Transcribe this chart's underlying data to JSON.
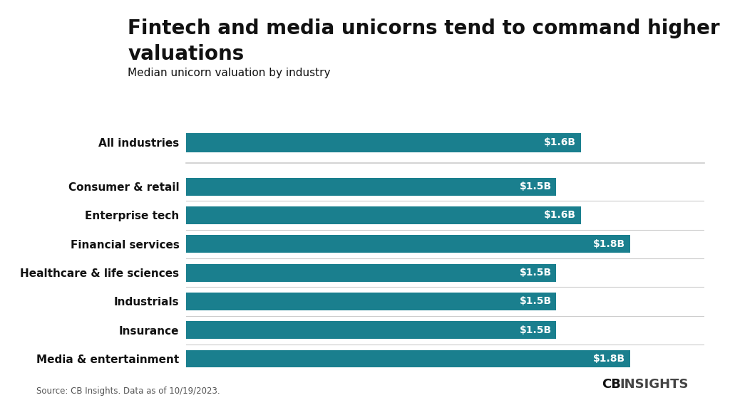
{
  "title_line1": "Fintech and media unicorns tend to command higher",
  "title_line2": "valuations",
  "subtitle": "Median unicorn valuation by industry",
  "source": "Source: CB Insights. Data as of 10/19/2023.",
  "categories_top": [
    "All industries"
  ],
  "values_top": [
    1.6
  ],
  "labels_top": [
    "$1.6B"
  ],
  "categories_bottom": [
    "Consumer & retail",
    "Enterprise tech",
    "Financial services",
    "Healthcare & life sciences",
    "Industrials",
    "Insurance",
    "Media & entertainment"
  ],
  "values_bottom": [
    1.5,
    1.6,
    1.8,
    1.5,
    1.5,
    1.5,
    1.8
  ],
  "labels_bottom": [
    "$1.5B",
    "$1.6B",
    "$1.8B",
    "$1.5B",
    "$1.5B",
    "$1.5B",
    "$1.8B"
  ],
  "bar_color": "#1a7f8e",
  "label_color": "#ffffff",
  "background_color": "#ffffff",
  "text_color": "#111111",
  "separator_color": "#cccccc",
  "title_fontsize": 20,
  "subtitle_fontsize": 11,
  "label_fontsize": 10,
  "category_fontsize": 11,
  "xlim": [
    0,
    2.1
  ],
  "bar_height": 0.62
}
